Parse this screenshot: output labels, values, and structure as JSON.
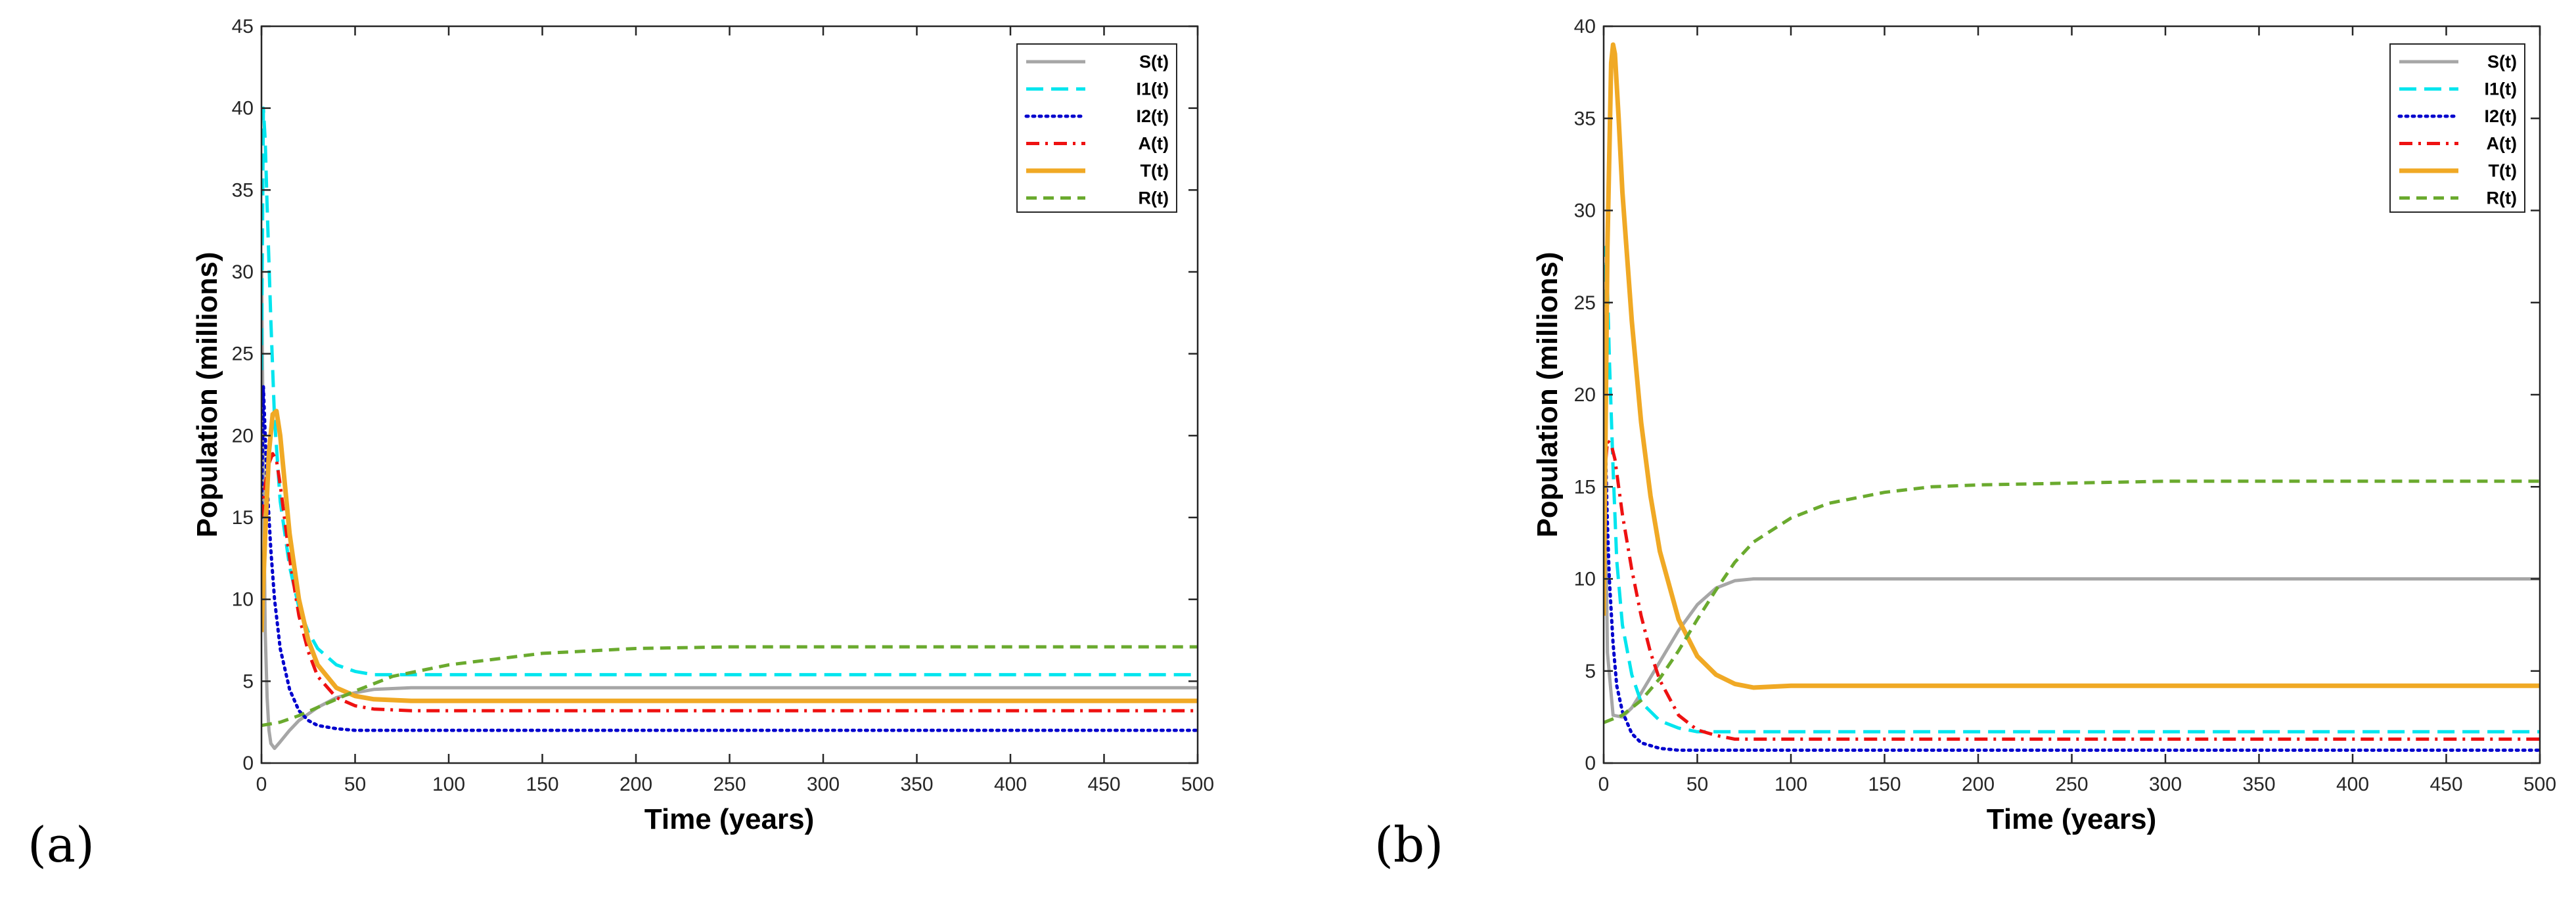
{
  "figure": {
    "panel_a_label": "(a)",
    "panel_b_label": "(b)"
  },
  "chart_data": [
    {
      "type": "line",
      "panel": "(a)",
      "title": "",
      "xlabel": "Time (years)",
      "ylabel": "Population (millions)",
      "xlim": [
        0,
        500
      ],
      "ylim": [
        0,
        45
      ],
      "xticks": [
        0,
        50,
        100,
        150,
        200,
        250,
        300,
        350,
        400,
        450,
        500
      ],
      "yticks": [
        0,
        5,
        10,
        15,
        20,
        25,
        30,
        35,
        40,
        45
      ],
      "grid": false,
      "legend_position": "top-right",
      "series": [
        {
          "name": "S(t)",
          "color": "#a6a6a6",
          "dash": "solid",
          "x": [
            0,
            1,
            2,
            3,
            4,
            5,
            7,
            10,
            15,
            20,
            30,
            40,
            50,
            60,
            80,
            100,
            150,
            200,
            300,
            400,
            500
          ],
          "y": [
            31,
            18,
            8,
            4,
            2,
            1.2,
            0.9,
            1.3,
            2.0,
            2.6,
            3.4,
            4.0,
            4.3,
            4.5,
            4.6,
            4.6,
            4.6,
            4.6,
            4.6,
            4.6,
            4.6
          ]
        },
        {
          "name": "I1(t)",
          "color": "#00e5ee",
          "dash": "long-dash",
          "x": [
            0,
            1,
            2,
            3,
            5,
            7,
            10,
            15,
            20,
            25,
            30,
            40,
            50,
            60,
            80,
            100,
            150,
            200,
            300,
            400,
            500
          ],
          "y": [
            24,
            40,
            38,
            34,
            27,
            21,
            16,
            12,
            9.5,
            8.0,
            7.0,
            6.0,
            5.6,
            5.4,
            5.4,
            5.4,
            5.4,
            5.4,
            5.4,
            5.4,
            5.4
          ]
        },
        {
          "name": "I2(t)",
          "color": "#0000cd",
          "dash": "dotted",
          "x": [
            0,
            1,
            2,
            3,
            5,
            7,
            10,
            15,
            20,
            25,
            30,
            40,
            50,
            60,
            80,
            100,
            150,
            200,
            300,
            400,
            500
          ],
          "y": [
            15,
            23,
            20,
            17,
            13,
            10,
            7.0,
            4.5,
            3.2,
            2.6,
            2.3,
            2.1,
            2.0,
            2.0,
            2.0,
            2.0,
            2.0,
            2.0,
            2.0,
            2.0,
            2.0
          ]
        },
        {
          "name": "A(t)",
          "color": "#ee1111",
          "dash": "dash-dot",
          "x": [
            0,
            2,
            4,
            6,
            8,
            10,
            15,
            20,
            25,
            30,
            40,
            50,
            60,
            80,
            100,
            150,
            200,
            300,
            400,
            500
          ],
          "y": [
            15,
            17,
            18.3,
            18.9,
            18.5,
            17,
            12.5,
            9.0,
            6.8,
            5.3,
            4.0,
            3.5,
            3.3,
            3.2,
            3.2,
            3.2,
            3.2,
            3.2,
            3.2,
            3.2
          ]
        },
        {
          "name": "T(t)",
          "color": "#f0a925",
          "dash": "solid",
          "x": [
            0,
            2,
            4,
            6,
            8,
            10,
            15,
            20,
            25,
            30,
            40,
            50,
            60,
            80,
            100,
            150,
            200,
            300,
            400,
            500
          ],
          "y": [
            8,
            14,
            19,
            21.3,
            21.5,
            20,
            14,
            10,
            7.5,
            6.0,
            4.6,
            4.1,
            3.9,
            3.8,
            3.8,
            3.8,
            3.8,
            3.8,
            3.8,
            3.8
          ]
        },
        {
          "name": "R(t)",
          "color": "#6aaa2e",
          "dash": "dashed",
          "x": [
            0,
            10,
            20,
            30,
            40,
            50,
            70,
            100,
            150,
            200,
            250,
            300,
            350,
            400,
            450,
            500
          ],
          "y": [
            2.3,
            2.5,
            2.9,
            3.4,
            3.9,
            4.4,
            5.3,
            6.0,
            6.7,
            7.0,
            7.1,
            7.1,
            7.1,
            7.1,
            7.1,
            7.1
          ]
        }
      ]
    },
    {
      "type": "line",
      "panel": "(b)",
      "title": "",
      "xlabel": "Time (years)",
      "ylabel": "Population (millions)",
      "xlim": [
        0,
        500
      ],
      "ylim": [
        0,
        40
      ],
      "xticks": [
        0,
        50,
        100,
        150,
        200,
        250,
        300,
        350,
        400,
        450,
        500
      ],
      "yticks": [
        0,
        5,
        10,
        15,
        20,
        25,
        30,
        35,
        40
      ],
      "grid": false,
      "legend_position": "top-right",
      "series": [
        {
          "name": "S(t)",
          "color": "#a6a6a6",
          "dash": "solid",
          "x": [
            0,
            2,
            5,
            10,
            15,
            20,
            30,
            40,
            50,
            60,
            70,
            80,
            100,
            150,
            200,
            300,
            400,
            500
          ],
          "y": [
            22,
            6,
            2.6,
            2.5,
            3.0,
            3.8,
            5.5,
            7.2,
            8.6,
            9.5,
            9.9,
            10.0,
            10.0,
            10.0,
            10.0,
            10.0,
            10.0,
            10.0
          ]
        },
        {
          "name": "I1(t)",
          "color": "#00e5ee",
          "dash": "long-dash",
          "x": [
            0,
            1,
            2,
            3,
            5,
            7,
            10,
            15,
            20,
            30,
            40,
            50,
            60,
            80,
            100,
            150,
            200,
            300,
            400,
            500
          ],
          "y": [
            18,
            28,
            26,
            22,
            16,
            11,
            7.5,
            4.8,
            3.3,
            2.3,
            1.9,
            1.7,
            1.7,
            1.7,
            1.7,
            1.7,
            1.7,
            1.7,
            1.7,
            1.7
          ]
        },
        {
          "name": "I2(t)",
          "color": "#0000cd",
          "dash": "dotted",
          "x": [
            0,
            1,
            2,
            3,
            5,
            7,
            10,
            15,
            20,
            30,
            40,
            50,
            60,
            80,
            100,
            150,
            200,
            300,
            400,
            500
          ],
          "y": [
            12,
            17,
            13,
            10,
            6.5,
            4.2,
            2.8,
            1.6,
            1.1,
            0.8,
            0.7,
            0.7,
            0.7,
            0.7,
            0.7,
            0.7,
            0.7,
            0.7,
            0.7,
            0.7
          ]
        },
        {
          "name": "A(t)",
          "color": "#ee1111",
          "dash": "dash-dot",
          "x": [
            0,
            2,
            4,
            6,
            8,
            10,
            15,
            20,
            25,
            30,
            40,
            50,
            60,
            70,
            80,
            100,
            150,
            200,
            300,
            400,
            500
          ],
          "y": [
            15,
            17.5,
            17.3,
            16.5,
            15,
            13.5,
            10.5,
            8.0,
            6.0,
            4.5,
            2.6,
            1.8,
            1.5,
            1.3,
            1.3,
            1.3,
            1.3,
            1.3,
            1.3,
            1.3,
            1.3
          ]
        },
        {
          "name": "T(t)",
          "color": "#f0a925",
          "dash": "solid",
          "x": [
            0,
            2,
            4,
            5,
            6,
            8,
            10,
            15,
            20,
            25,
            30,
            40,
            50,
            60,
            70,
            80,
            100,
            150,
            200,
            300,
            400,
            500
          ],
          "y": [
            8,
            28,
            38,
            39,
            38.5,
            35,
            31,
            24,
            18.5,
            14.5,
            11.5,
            7.8,
            5.8,
            4.8,
            4.3,
            4.1,
            4.2,
            4.2,
            4.2,
            4.2,
            4.2,
            4.2
          ]
        },
        {
          "name": "R(t)",
          "color": "#6aaa2e",
          "dash": "dashed",
          "x": [
            0,
            10,
            20,
            30,
            40,
            50,
            60,
            70,
            80,
            100,
            120,
            150,
            175,
            200,
            250,
            300,
            400,
            500
          ],
          "y": [
            2.2,
            2.6,
            3.4,
            4.6,
            6.1,
            7.8,
            9.4,
            10.9,
            12.0,
            13.3,
            14.1,
            14.7,
            15.0,
            15.1,
            15.2,
            15.3,
            15.3,
            15.3
          ]
        }
      ]
    }
  ]
}
